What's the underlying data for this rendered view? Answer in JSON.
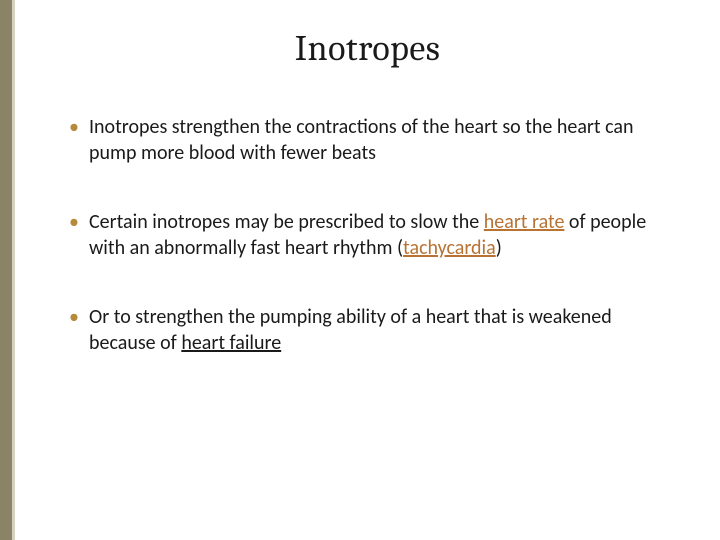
{
  "colors": {
    "side_accent": "#8a8365",
    "side_accent_inner": "#d5d1c1",
    "background": "#ffffff",
    "title_color": "#1a1a1a",
    "body_color": "#1a1a1a",
    "bullet_color": "#b68a3a",
    "link_color": "#b87333"
  },
  "typography": {
    "title_font": "Cambria",
    "title_fontsize": 36,
    "body_font": "Calibri",
    "body_fontsize": 20
  },
  "slide": {
    "title": "Inotropes",
    "bullets": [
      {
        "prefix": "Inotropes strengthen the contractions of the heart so the heart can pump more blood with fewer beats",
        "links": []
      },
      {
        "pre": " Certain inotropes may be prescribed to slow the ",
        "link1": "heart rate",
        "mid1": " of people with an abnormally fast heart rhythm (",
        "link2": "tachycardia",
        "post": ")"
      },
      {
        "pre": " Or to strengthen the pumping ability of a heart that is weakened because of ",
        "underlined": "heart failure",
        "post": ""
      }
    ]
  }
}
